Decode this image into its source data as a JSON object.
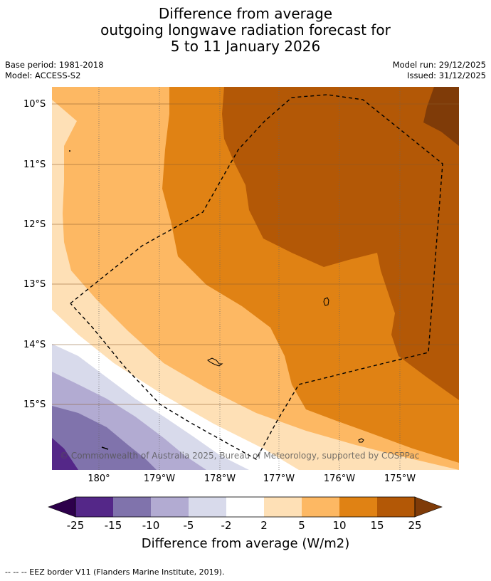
{
  "title": {
    "line1": "Difference from average",
    "line2": "outgoing longwave radiation forecast for",
    "line3": "5 to 11 January 2026"
  },
  "meta": {
    "base_period": "Base period: 1981-2018",
    "model": "Model: ACCESS-S2",
    "model_run": "Model run: 29/12/2025",
    "issued": "Issued: 31/12/2025"
  },
  "map": {
    "lat_labels": [
      "10°S",
      "11°S",
      "12°S",
      "13°S",
      "14°S",
      "15°S"
    ],
    "lon_labels": [
      "180°",
      "179°W",
      "178°W",
      "177°W",
      "176°W",
      "175°W"
    ],
    "copyright": "© Commonwealth of Australia 2025, Bureau of Meteorology, supported by COSPPac"
  },
  "colorbar": {
    "ticks": [
      "-25",
      "-15",
      "-10",
      "-5",
      "-2",
      "2",
      "5",
      "10",
      "15",
      "25"
    ],
    "colors": {
      "below_min": "#2d004b",
      "n25_n15": "#542788",
      "n15_n10": "#8073ac",
      "n10_n5": "#b2abd2",
      "n5_n2": "#d8daeb",
      "n2_2": "#ffffff",
      "p2_5": "#fee0b6",
      "p5_10": "#fdb863",
      "p10_15": "#e08214",
      "p15_25": "#b35806",
      "above_max": "#7f3b08"
    },
    "title": "Difference from average (W/m2)"
  },
  "footer": "--  --  -- EEZ border V11 (Flanders Marine Institute, 2019)."
}
